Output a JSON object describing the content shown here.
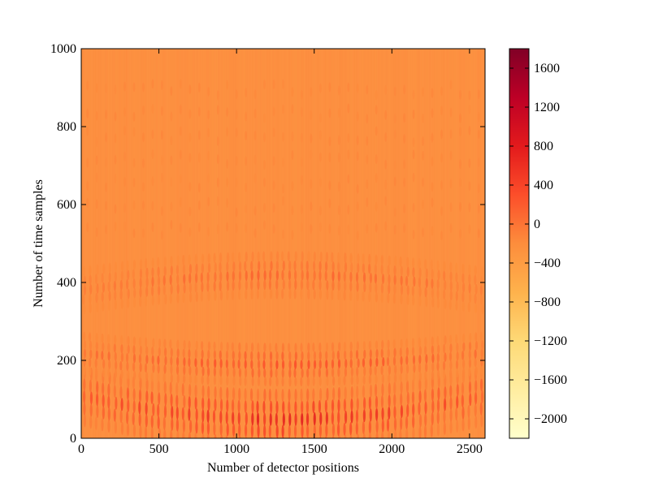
{
  "chart_data": {
    "type": "heatmap",
    "title": "",
    "xlabel": "Number of detector positions",
    "ylabel": "Number of time samples",
    "xlim": [
      0,
      2600
    ],
    "ylim": [
      0,
      1000
    ],
    "x_ticks": [
      0,
      500,
      1000,
      1500,
      2000,
      2500
    ],
    "y_ticks": [
      0,
      200,
      400,
      600,
      800,
      1000
    ],
    "colorbar": {
      "colormap": "YlOrRd",
      "range": [
        -2200,
        1800
      ],
      "ticks": [
        1600,
        1200,
        800,
        400,
        0,
        -400,
        -800,
        -1200,
        -1600,
        -2000
      ],
      "tick_labels": [
        "1600",
        "1200",
        "800",
        "400",
        "0",
        "−400",
        "−800",
        "−1200",
        "−1600",
        "−2000"
      ]
    },
    "background_value": -250,
    "bands": [
      {
        "description": "strong oscillating band near bottom",
        "time_range": [
          20,
          160
        ],
        "peak_value": 900
      },
      {
        "description": "secondary band",
        "time_range": [
          150,
          250
        ],
        "peak_value": 400
      },
      {
        "description": "middle oscillating band",
        "time_range": [
          360,
          470
        ],
        "peak_value": 200
      }
    ]
  }
}
